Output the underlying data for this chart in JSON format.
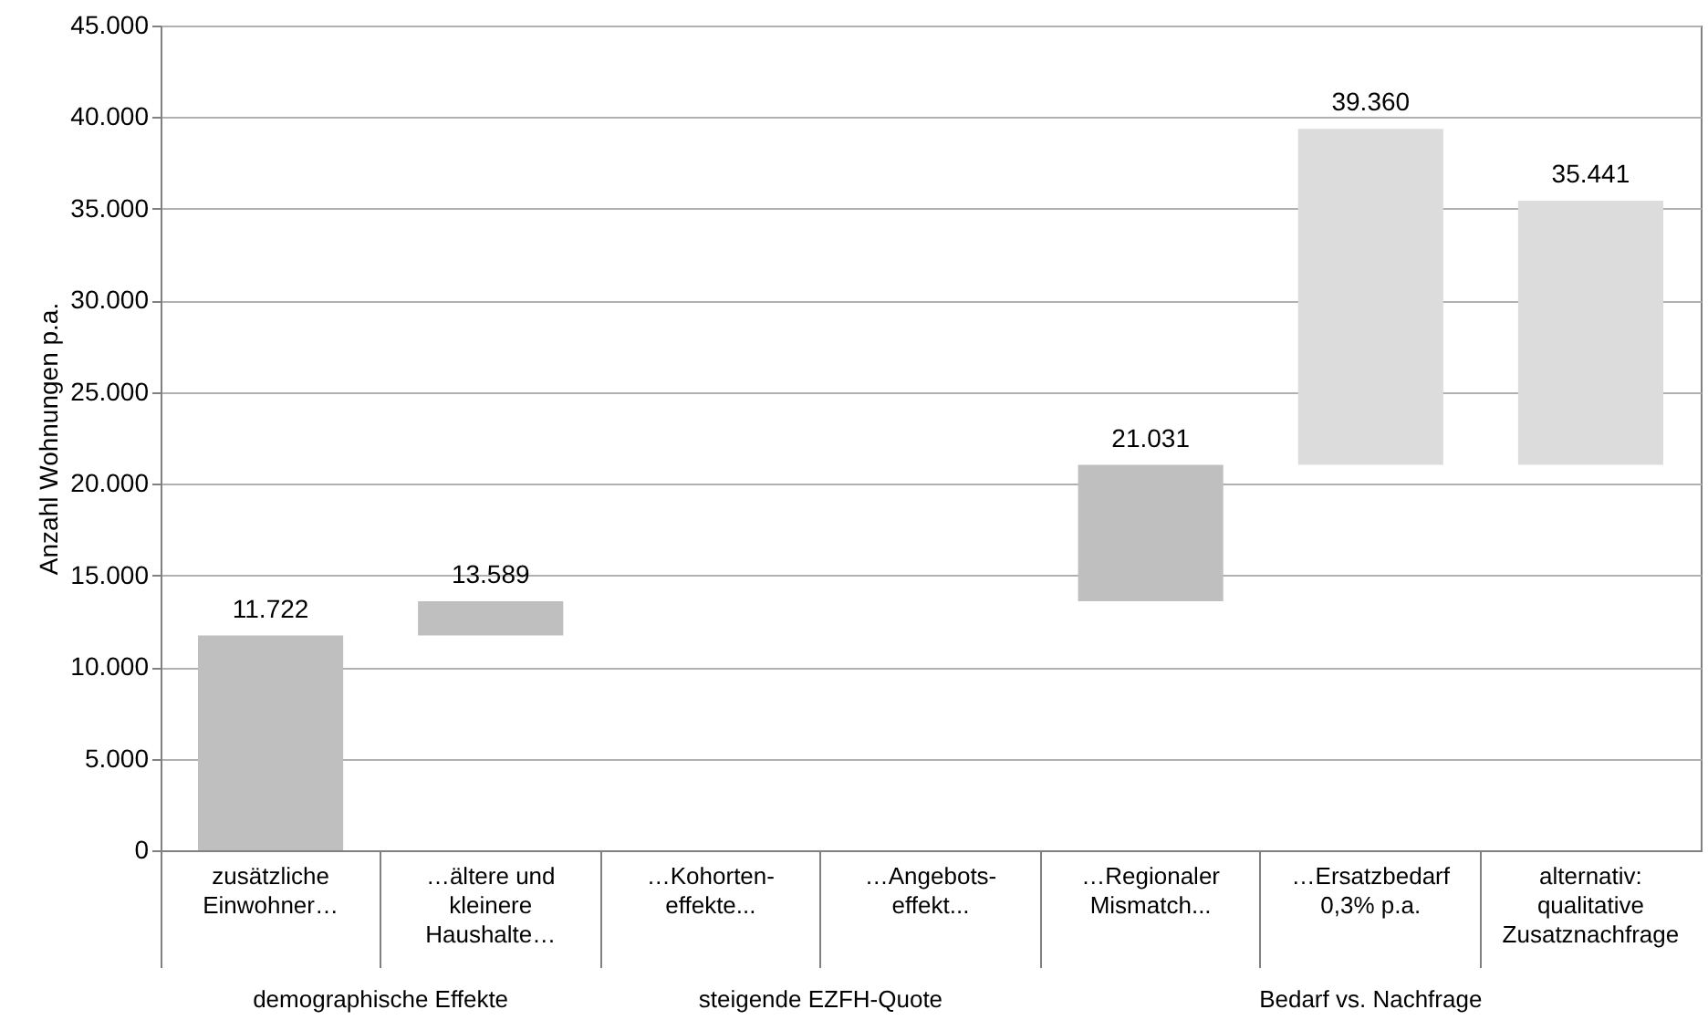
{
  "chart_data": {
    "type": "bar",
    "categories": [
      "zusätzliche\nEinwohner…",
      "…ältere und\nkleinere\nHaushalte…",
      "…Kohorten-\neffekte...",
      "…Angebots-\neffekt...",
      "…Regionaler\nMismatch...",
      "…Ersatzbedarf\n0,3% p.a.",
      "alternativ:\nqualitative\nZusatznachfrage"
    ],
    "values": [
      11722,
      1867,
      null,
      null,
      7442,
      18329,
      14410
    ],
    "base": [
      0,
      11722,
      null,
      null,
      13589,
      21031,
      21031
    ],
    "colors": [
      "#bfbfbf",
      "#bfbfbf",
      null,
      null,
      "#bfbfbf",
      "#dcdcdc",
      "#dcdcdc"
    ],
    "value_labels": [
      "11.722",
      "13.589",
      null,
      null,
      "21.031",
      "39.360",
      "35.441"
    ],
    "ylabel": "Anzahl Wohnungen p.a.",
    "ylim": [
      0,
      45000
    ],
    "yticks": [
      {
        "value": 0,
        "label": "0"
      },
      {
        "value": 5000,
        "label": "5.000"
      },
      {
        "value": 10000,
        "label": "10.000"
      },
      {
        "value": 15000,
        "label": "15.000"
      },
      {
        "value": 20000,
        "label": "20.000"
      },
      {
        "value": 25000,
        "label": "25.000"
      },
      {
        "value": 30000,
        "label": "30.000"
      },
      {
        "value": 35000,
        "label": "35.000"
      },
      {
        "value": 40000,
        "label": "40.000"
      },
      {
        "value": 45000,
        "label": "45.000"
      }
    ],
    "annotations": [
      "demographische Effekte",
      "steigende EZFH-Quote",
      "Bedarf vs. Nachfrage"
    ],
    "grid": "y"
  }
}
